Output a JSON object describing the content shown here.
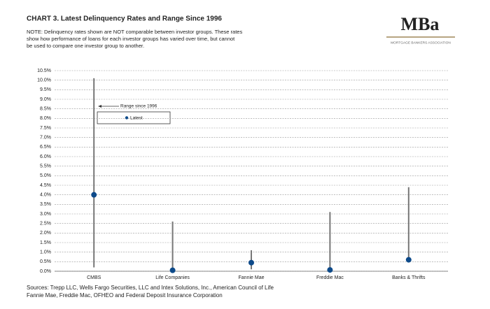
{
  "chart_data": {
    "type": "range",
    "title": "CHART 3.  Latest Delinquency Rates and Range Since 1996",
    "note": [
      "NOTE: Delinquency rates shown are NOT comparable between investor groups.  These rates",
      "show how performance of loans for each investor groups has varied over time, but cannot",
      "be used to compare one investor group to another."
    ],
    "logo": "MBa",
    "logo_subtitle": "MORTGAGE BANKERS ASSOCIATION",
    "sources": [
      "Sources: Trepp LLC, Wells Fargo Securities, LLC and Intex Solutions, Inc., American Council of Life",
      "Fannie Mae, Freddie Mac, OFHEO and Federal Deposit Insurance Corporation"
    ],
    "categories": [
      "CMBS",
      "Life Companies",
      "Fannie Mae",
      "Freddie Mac",
      "Banks & Thrifts"
    ],
    "series": [
      {
        "name": "Range since 1996",
        "color": "#777777",
        "low": [
          0.2,
          0.0,
          0.1,
          0.0,
          0.6
        ],
        "high": [
          10.1,
          2.6,
          1.1,
          3.1,
          4.4
        ]
      },
      {
        "name": "Latest",
        "color": "#0d4a8a",
        "values": [
          4.0,
          0.05,
          0.45,
          0.07,
          0.6
        ]
      }
    ],
    "ylim": [
      0,
      10.5
    ],
    "yticks": [
      {
        "value": 0,
        "label": "0.0%"
      },
      {
        "value": 0.5,
        "label": "0.5%"
      },
      {
        "value": 1,
        "label": "1.0%"
      },
      {
        "value": 1.5,
        "label": "1.5%"
      },
      {
        "value": 2,
        "label": "2.0%"
      },
      {
        "value": 2.5,
        "label": "2.5%"
      },
      {
        "value": 3,
        "label": "3.0%"
      },
      {
        "value": 3.5,
        "label": "3.5%"
      },
      {
        "value": 4,
        "label": "4.0%"
      },
      {
        "value": 4.5,
        "label": "4.5%"
      },
      {
        "value": 5,
        "label": "5.0%"
      },
      {
        "value": 5.5,
        "label": "5.5%"
      },
      {
        "value": 6,
        "label": "6.0%"
      },
      {
        "value": 6.5,
        "label": "6.5%"
      },
      {
        "value": 7,
        "label": "7.0%"
      },
      {
        "value": 7.5,
        "label": "7.5%"
      },
      {
        "value": 8,
        "label": "8.0%"
      },
      {
        "value": 8.5,
        "label": "8.5%"
      },
      {
        "value": 9,
        "label": "9.0%"
      },
      {
        "value": 9.5,
        "label": "9.5%"
      },
      {
        "value": 10,
        "label": "10.0%"
      },
      {
        "value": 10.5,
        "label": "10.5%"
      }
    ],
    "grid": true
  }
}
